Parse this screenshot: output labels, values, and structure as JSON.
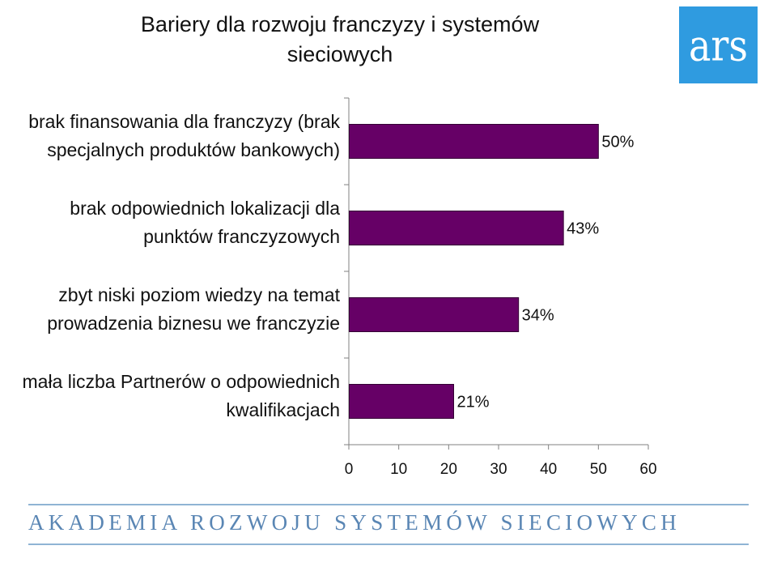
{
  "chart_data": {
    "type": "bar",
    "orientation": "horizontal",
    "title": "Bariery dla rozwoju franczyzy i systemów sieciowych",
    "categories": [
      "brak finansowania dla franczyzy (brak specjalnych produktów bankowych)",
      "brak odpowiednich lokalizacji dla punktów franczyzowych",
      "zbyt niski poziom wiedzy na temat prowadzenia biznesu we franczyzie",
      "mała liczba Partnerów o odpowiednich kwalifikacjach"
    ],
    "category_lines": [
      [
        "brak finansowania dla franczyzy (brak",
        "specjalnych produktów bankowych)"
      ],
      [
        "brak odpowiednich lokalizacji dla",
        "punktów franczyzowych"
      ],
      [
        "zbyt niski poziom wiedzy na temat",
        "prowadzenia biznesu we franczyzie"
      ],
      [
        "mała liczba Partnerów o odpowiednich",
        "kwalifikacjach"
      ]
    ],
    "values": [
      50,
      43,
      34,
      21
    ],
    "data_labels": [
      "50%",
      "43%",
      "34%",
      "21%"
    ],
    "xlim": [
      0,
      60
    ],
    "xticks": [
      "0",
      "10",
      "20",
      "30",
      "40",
      "50",
      "60"
    ],
    "xlabel": "",
    "ylabel": "",
    "grid": false,
    "bar_color": "#660066"
  },
  "header": {
    "title_line1": "Bariery dla rozwoju franczyzy i systemów",
    "title_line2": "sieciowych"
  },
  "logo": {
    "text": "ars",
    "color": "#2f9be0"
  },
  "footer": {
    "text": "AKADEMIA ROZWOJU SYSTEMÓW SIECIOWYCH"
  }
}
